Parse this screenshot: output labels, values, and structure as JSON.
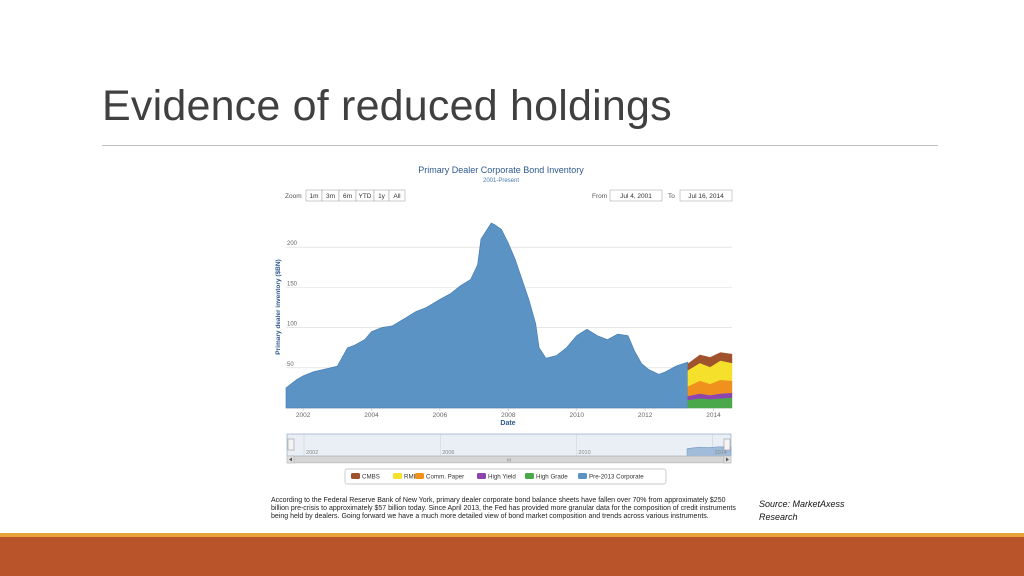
{
  "slide": {
    "title": "Evidence of reduced holdings",
    "caption": "According to the Federal Reserve Bank of New York, primary dealer corporate bond balance sheets have fallen over 70% from approximately $250 billion pre-crisis to approximately $57 billion today. Since April 2013, the Fed has provided more granular data for the composition of credit instruments being held by dealers. Going forward we have a much more detailed view of bond market composition and trends across various instruments.",
    "source": "Source:  MarketAxess Research"
  },
  "colors": {
    "accent_gold": "#e8a33d",
    "accent_rust": "#b9532a"
  },
  "controls": {
    "zoom_label": "Zoom",
    "zoom_buttons": [
      "1m",
      "3m",
      "6m",
      "YTD",
      "1y",
      "All"
    ],
    "from_label": "From",
    "from_value": "Jul 4, 2001",
    "to_label": "To",
    "to_value": "Jul 16, 2014"
  },
  "navigator": {
    "labels": [
      "2002",
      "2006",
      "2010",
      "2014"
    ],
    "scroll_grip": "III"
  },
  "chart_data": {
    "type": "area",
    "title": "Primary Dealer Corporate Bond Inventory",
    "subtitle": "2001-Present",
    "xlabel": "Date",
    "ylabel": "Primary dealer inventory ($BN)",
    "xlim": [
      2001.5,
      2014.54
    ],
    "ylim": [
      0,
      240
    ],
    "y_ticks": [
      50,
      100,
      150,
      200
    ],
    "x_ticks": [
      2002,
      2004,
      2006,
      2008,
      2010,
      2012,
      2014
    ],
    "grid": true,
    "legend_position": "bottom",
    "series": [
      {
        "name": "Pre-2013 Corporate",
        "color": "#5b93c5",
        "x": [
          2001.5,
          2001.8,
          2002.0,
          2002.3,
          2002.6,
          2003.0,
          2003.3,
          2003.5,
          2003.8,
          2004.0,
          2004.3,
          2004.6,
          2005.0,
          2005.3,
          2005.6,
          2006.0,
          2006.3,
          2006.6,
          2006.9,
          2007.1,
          2007.2,
          2007.35,
          2007.5,
          2007.6,
          2007.8,
          2008.0,
          2008.2,
          2008.4,
          2008.6,
          2008.8,
          2008.9,
          2009.1,
          2009.4,
          2009.7,
          2010.0,
          2010.3,
          2010.6,
          2010.9,
          2011.2,
          2011.5,
          2011.7,
          2011.9,
          2012.1,
          2012.4,
          2012.6,
          2012.9,
          2013.1,
          2013.25
        ],
        "values": [
          25,
          35,
          40,
          45,
          48,
          52,
          75,
          78,
          85,
          95,
          100,
          102,
          112,
          120,
          125,
          135,
          142,
          152,
          160,
          178,
          210,
          220,
          230,
          228,
          222,
          205,
          185,
          160,
          135,
          105,
          75,
          62,
          65,
          75,
          90,
          98,
          90,
          85,
          92,
          90,
          70,
          55,
          48,
          42,
          45,
          52,
          55,
          57
        ]
      },
      {
        "name": "High Grade",
        "color": "#4aa84a",
        "x": [
          2013.25,
          2013.6,
          2013.9,
          2014.2,
          2014.54
        ],
        "values": [
          10,
          12,
          11,
          12,
          13
        ]
      },
      {
        "name": "High Yield",
        "color": "#8e44ad",
        "x": [
          2013.25,
          2013.6,
          2013.9,
          2014.2,
          2014.54
        ],
        "values": [
          5,
          6,
          5,
          6,
          6
        ]
      },
      {
        "name": "Comm. Paper",
        "color": "#f0911e",
        "x": [
          2013.25,
          2013.6,
          2013.9,
          2014.2,
          2014.54
        ],
        "values": [
          12,
          16,
          14,
          17,
          15
        ]
      },
      {
        "name": "RMBS",
        "color": "#f5e02c",
        "x": [
          2013.25,
          2013.6,
          2013.9,
          2014.2,
          2014.54
        ],
        "values": [
          20,
          22,
          21,
          24,
          22
        ]
      },
      {
        "name": "CMBS",
        "color": "#a0522d",
        "x": [
          2013.25,
          2013.6,
          2013.9,
          2014.2,
          2014.54
        ],
        "values": [
          8,
          10,
          12,
          10,
          11
        ]
      }
    ],
    "legend_order": [
      "CMBS",
      "RMBS",
      "Comm. Paper",
      "High Yield",
      "High Grade",
      "Pre-2013 Corporate"
    ]
  }
}
